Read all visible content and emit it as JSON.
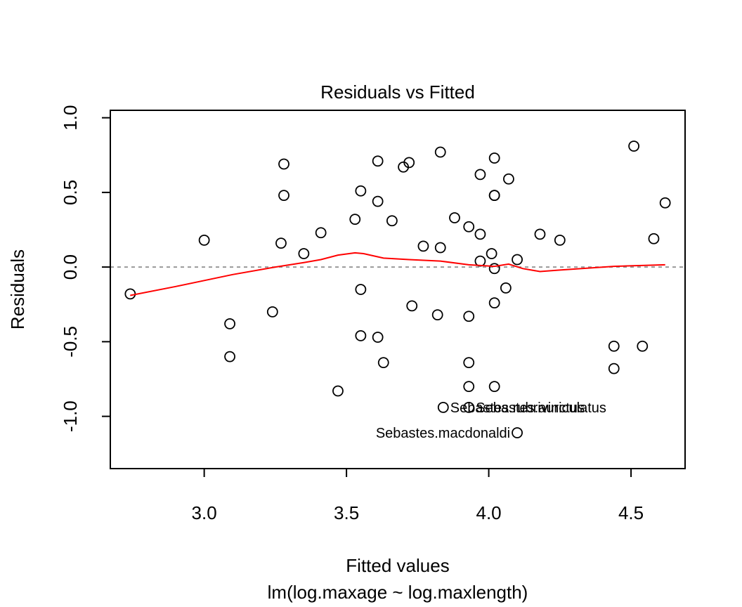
{
  "chart_data": {
    "type": "scatter",
    "title": "Residuals vs Fitted",
    "xlabel": "Fitted values",
    "subtitle": "lm(log.maxage ~ log.maxlength)",
    "ylabel": "Residuals",
    "xlim": [
      2.67,
      4.69
    ],
    "ylim": [
      -1.35,
      1.05
    ],
    "xticks": [
      3.0,
      3.5,
      4.0,
      4.5
    ],
    "xtick_labels": [
      "3.0",
      "3.5",
      "4.0",
      "4.5"
    ],
    "yticks": [
      -1.0,
      -0.5,
      0.0,
      0.5,
      1.0
    ],
    "ytick_labels": [
      "-1.0",
      "-0.5",
      "0.0",
      "0.5",
      "1.0"
    ],
    "reference_line_y": 0,
    "colors": {
      "points": "#000000",
      "smooth": "#ff0000",
      "reference": "#999999"
    },
    "points": [
      {
        "x": 2.74,
        "y": -0.18
      },
      {
        "x": 3.0,
        "y": 0.18
      },
      {
        "x": 3.09,
        "y": -0.38
      },
      {
        "x": 3.09,
        "y": -0.6
      },
      {
        "x": 3.24,
        "y": -0.3
      },
      {
        "x": 3.27,
        "y": 0.16
      },
      {
        "x": 3.28,
        "y": 0.69
      },
      {
        "x": 3.28,
        "y": 0.48
      },
      {
        "x": 3.35,
        "y": 0.09
      },
      {
        "x": 3.41,
        "y": 0.23
      },
      {
        "x": 3.47,
        "y": -0.83
      },
      {
        "x": 3.53,
        "y": 0.32
      },
      {
        "x": 3.55,
        "y": 0.51
      },
      {
        "x": 3.55,
        "y": -0.15
      },
      {
        "x": 3.55,
        "y": -0.46
      },
      {
        "x": 3.61,
        "y": 0.71
      },
      {
        "x": 3.61,
        "y": 0.44
      },
      {
        "x": 3.61,
        "y": -0.47
      },
      {
        "x": 3.63,
        "y": -0.64
      },
      {
        "x": 3.66,
        "y": 0.31
      },
      {
        "x": 3.7,
        "y": 0.67
      },
      {
        "x": 3.72,
        "y": 0.7
      },
      {
        "x": 3.73,
        "y": -0.26
      },
      {
        "x": 3.77,
        "y": 0.14
      },
      {
        "x": 3.82,
        "y": -0.32
      },
      {
        "x": 3.83,
        "y": 0.77
      },
      {
        "x": 3.83,
        "y": 0.13
      },
      {
        "x": 3.84,
        "y": -0.94
      },
      {
        "x": 3.88,
        "y": 0.33
      },
      {
        "x": 3.93,
        "y": 0.27
      },
      {
        "x": 3.93,
        "y": -0.33
      },
      {
        "x": 3.93,
        "y": -0.64
      },
      {
        "x": 3.93,
        "y": -0.8
      },
      {
        "x": 3.93,
        "y": -0.94
      },
      {
        "x": 3.97,
        "y": 0.62
      },
      {
        "x": 3.97,
        "y": 0.22
      },
      {
        "x": 3.97,
        "y": 0.04
      },
      {
        "x": 4.01,
        "y": 0.09
      },
      {
        "x": 4.02,
        "y": 0.73
      },
      {
        "x": 4.02,
        "y": 0.48
      },
      {
        "x": 4.02,
        "y": 0.48
      },
      {
        "x": 4.02,
        "y": -0.01
      },
      {
        "x": 4.02,
        "y": -0.24
      },
      {
        "x": 4.02,
        "y": -0.8
      },
      {
        "x": 4.06,
        "y": -0.14
      },
      {
        "x": 4.07,
        "y": 0.59
      },
      {
        "x": 4.1,
        "y": 0.05
      },
      {
        "x": 4.1,
        "y": -1.11
      },
      {
        "x": 4.18,
        "y": 0.22
      },
      {
        "x": 4.25,
        "y": 0.18
      },
      {
        "x": 4.44,
        "y": -0.53
      },
      {
        "x": 4.44,
        "y": -0.68
      },
      {
        "x": 4.51,
        "y": 0.81
      },
      {
        "x": 4.54,
        "y": -0.53
      },
      {
        "x": 4.58,
        "y": 0.19
      },
      {
        "x": 4.62,
        "y": 0.43
      }
    ],
    "smooth": [
      {
        "x": 2.74,
        "y": -0.19
      },
      {
        "x": 2.9,
        "y": -0.13
      },
      {
        "x": 3.1,
        "y": -0.05
      },
      {
        "x": 3.25,
        "y": 0.0
      },
      {
        "x": 3.35,
        "y": 0.03
      },
      {
        "x": 3.41,
        "y": 0.05
      },
      {
        "x": 3.47,
        "y": 0.08
      },
      {
        "x": 3.53,
        "y": 0.095
      },
      {
        "x": 3.56,
        "y": 0.09
      },
      {
        "x": 3.63,
        "y": 0.06
      },
      {
        "x": 3.72,
        "y": 0.05
      },
      {
        "x": 3.83,
        "y": 0.04
      },
      {
        "x": 3.93,
        "y": 0.015
      },
      {
        "x": 4.02,
        "y": 0.005
      },
      {
        "x": 4.07,
        "y": 0.02
      },
      {
        "x": 4.12,
        "y": -0.01
      },
      {
        "x": 4.18,
        "y": -0.03
      },
      {
        "x": 4.25,
        "y": -0.02
      },
      {
        "x": 4.44,
        "y": 0.005
      },
      {
        "x": 4.62,
        "y": 0.015
      }
    ],
    "annotations": [
      {
        "text": "Sebastes.rubrivinctus",
        "x": 3.84,
        "y": -0.94
      },
      {
        "text": "Sebastes.auriculatus",
        "x": 3.93,
        "y": -0.94
      },
      {
        "text": "Sebastes.macdonaldi",
        "x": 4.1,
        "y": -1.11
      }
    ]
  }
}
